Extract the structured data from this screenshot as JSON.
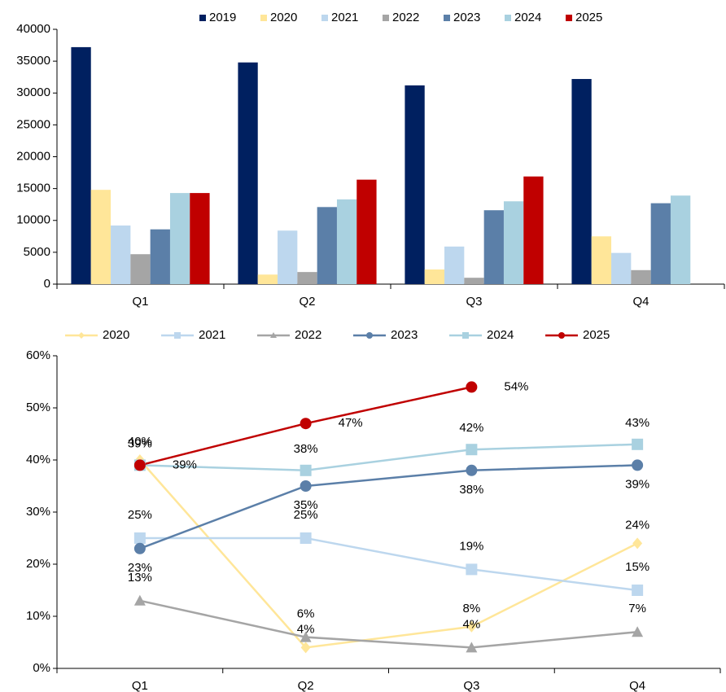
{
  "chart_data": [
    {
      "type": "bar",
      "categories": [
        "Q1",
        "Q2",
        "Q3",
        "Q4"
      ],
      "ylim": [
        0,
        40000
      ],
      "yticks": [
        0,
        5000,
        10000,
        15000,
        20000,
        25000,
        30000,
        35000,
        40000
      ],
      "legend": "top",
      "series": [
        {
          "name": "2019",
          "color": "#002060",
          "values": [
            37200,
            34800,
            31200,
            32200
          ]
        },
        {
          "name": "2020",
          "color": "#ffe699",
          "values": [
            14800,
            1500,
            2300,
            7500
          ]
        },
        {
          "name": "2021",
          "color": "#bdd7ee",
          "values": [
            9200,
            8400,
            5900,
            4900
          ]
        },
        {
          "name": "2022",
          "color": "#a5a5a5",
          "values": [
            4700,
            1900,
            1000,
            2200
          ]
        },
        {
          "name": "2023",
          "color": "#5b7fa8",
          "values": [
            8600,
            12100,
            11600,
            12700
          ]
        },
        {
          "name": "2024",
          "color": "#a9d1e0",
          "values": [
            14300,
            13300,
            13000,
            13900
          ]
        },
        {
          "name": "2025",
          "color": "#c00000",
          "values": [
            14300,
            16400,
            16900,
            null
          ]
        }
      ]
    },
    {
      "type": "line",
      "categories": [
        "Q1",
        "Q2",
        "Q3",
        "Q4"
      ],
      "ylim": [
        0,
        60
      ],
      "yticks": [
        {
          "value": 0,
          "label": "0%"
        },
        {
          "value": 10,
          "label": "10%"
        },
        {
          "value": 20,
          "label": "20%"
        },
        {
          "value": 30,
          "label": "30%"
        },
        {
          "value": 40,
          "label": "40%"
        },
        {
          "value": 50,
          "label": "50%"
        },
        {
          "value": 60,
          "label": "60%"
        }
      ],
      "legend": "top",
      "series": [
        {
          "name": "2020",
          "color": "#ffe699",
          "marker": "diamond",
          "values": [
            40,
            4,
            8,
            24
          ],
          "value_labels": [
            "40%",
            "4%",
            "8%",
            "24%"
          ]
        },
        {
          "name": "2021",
          "color": "#bdd7ee",
          "marker": "square",
          "values": [
            25,
            25,
            19,
            15
          ],
          "value_labels": [
            "25%",
            "25%",
            "19%",
            "15%"
          ]
        },
        {
          "name": "2022",
          "color": "#a5a5a5",
          "marker": "triangle",
          "values": [
            13,
            6,
            4,
            7
          ],
          "value_labels": [
            "13%",
            "6%",
            "4%",
            "7%"
          ]
        },
        {
          "name": "2023",
          "color": "#5b7fa8",
          "marker": "circle",
          "values": [
            23,
            35,
            38,
            39
          ],
          "value_labels": [
            "23%",
            "35%",
            "38%",
            "39%"
          ]
        },
        {
          "name": "2024",
          "color": "#a9d1e0",
          "marker": "square",
          "values": [
            39,
            38,
            42,
            43
          ],
          "value_labels": [
            "39%",
            "38%",
            "42%",
            "43%"
          ]
        },
        {
          "name": "2025",
          "color": "#c00000",
          "marker": "circle",
          "values": [
            39,
            47,
            54,
            null
          ],
          "value_labels": [
            "39%",
            "47%",
            "54%",
            null
          ]
        }
      ]
    }
  ]
}
